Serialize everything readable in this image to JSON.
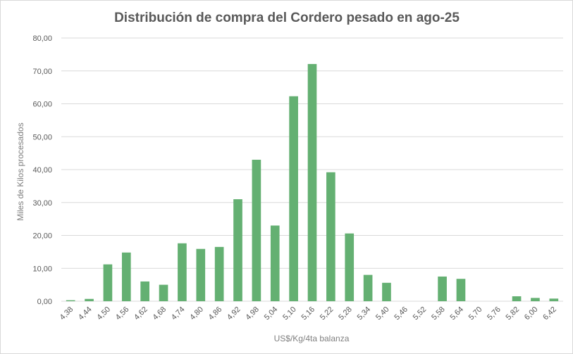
{
  "chart_data": {
    "type": "bar",
    "title": "Distribución de compra del Cordero pesado en ago-25",
    "xlabel": "US$/Kg/4ta balanza",
    "ylabel": "Miles de Kilos procesados",
    "ylim": [
      0,
      80
    ],
    "yticks": [
      "0,00",
      "10,00",
      "20,00",
      "30,00",
      "40,00",
      "50,00",
      "60,00",
      "70,00",
      "80,00"
    ],
    "grid": true,
    "legend": "none",
    "colors": {
      "bar": "#64b072",
      "grid": "#d9d9d9",
      "text": "#595959"
    },
    "categories": [
      "4,38",
      "4,44",
      "4,50",
      "4,56",
      "4,62",
      "4,68",
      "4,74",
      "4,80",
      "4,86",
      "4,92",
      "4,98",
      "5,04",
      "5,10",
      "5,16",
      "5,22",
      "5,28",
      "5,34",
      "5,40",
      "5,46",
      "5,52",
      "5,58",
      "5,64",
      "5,70",
      "5,76",
      "5,82",
      "6,00",
      "6,42"
    ],
    "values": [
      0.3,
      0.7,
      11.2,
      14.8,
      6.0,
      5.0,
      17.6,
      15.9,
      16.5,
      31.0,
      43.0,
      23.0,
      62.3,
      72.1,
      39.2,
      20.6,
      8.0,
      5.6,
      0,
      0,
      7.5,
      6.8,
      0,
      0,
      1.5,
      1.0,
      0.8
    ]
  }
}
